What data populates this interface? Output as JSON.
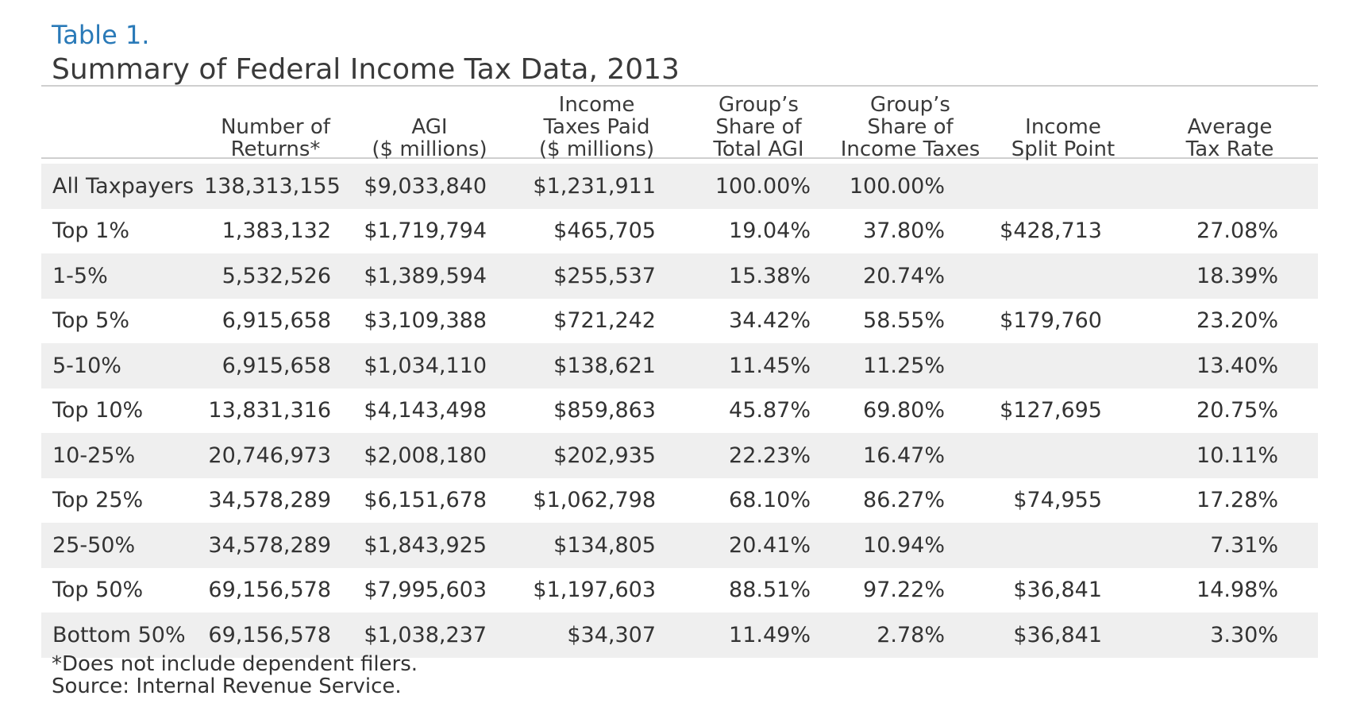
{
  "table": {
    "label": "Table 1.",
    "title": "Summary of Federal Income Tax Data, 2013",
    "headers": {
      "category": "",
      "returns": [
        "Number of",
        "Returns*"
      ],
      "agi": [
        "AGI",
        "($ millions)"
      ],
      "taxes_paid": [
        "Income",
        "Taxes Paid",
        "($ millions)"
      ],
      "share_agi": [
        "Group’s",
        "Share of",
        "Total AGI"
      ],
      "share_taxes": [
        "Group’s",
        "Share of",
        "Income Taxes"
      ],
      "split_point": [
        "Income",
        "Split Point"
      ],
      "avg_rate": [
        "Average",
        "Tax Rate"
      ]
    },
    "rows": [
      {
        "category": "All Taxpayers",
        "returns": "138,313,155",
        "agi": "$9,033,840",
        "taxes_paid": "$1,231,911",
        "share_agi": "100.00%",
        "share_taxes": "100.00%",
        "split_point": "",
        "avg_rate": ""
      },
      {
        "category": "Top 1%",
        "returns": "1,383,132",
        "agi": "$1,719,794",
        "taxes_paid": "$465,705",
        "share_agi": "19.04%",
        "share_taxes": "37.80%",
        "split_point": "$428,713",
        "avg_rate": "27.08%"
      },
      {
        "category": "1-5%",
        "returns": "5,532,526",
        "agi": "$1,389,594",
        "taxes_paid": "$255,537",
        "share_agi": "15.38%",
        "share_taxes": "20.74%",
        "split_point": "",
        "avg_rate": "18.39%"
      },
      {
        "category": "Top 5%",
        "returns": "6,915,658",
        "agi": "$3,109,388",
        "taxes_paid": "$721,242",
        "share_agi": "34.42%",
        "share_taxes": "58.55%",
        "split_point": "$179,760",
        "avg_rate": "23.20%"
      },
      {
        "category": "5-10%",
        "returns": "6,915,658",
        "agi": "$1,034,110",
        "taxes_paid": "$138,621",
        "share_agi": "11.45%",
        "share_taxes": "11.25%",
        "split_point": "",
        "avg_rate": "13.40%"
      },
      {
        "category": "Top 10%",
        "returns": "13,831,316",
        "agi": "$4,143,498",
        "taxes_paid": "$859,863",
        "share_agi": "45.87%",
        "share_taxes": "69.80%",
        "split_point": "$127,695",
        "avg_rate": "20.75%"
      },
      {
        "category": "10-25%",
        "returns": "20,746,973",
        "agi": "$2,008,180",
        "taxes_paid": "$202,935",
        "share_agi": "22.23%",
        "share_taxes": "16.47%",
        "split_point": "",
        "avg_rate": "10.11%"
      },
      {
        "category": "Top 25%",
        "returns": "34,578,289",
        "agi": "$6,151,678",
        "taxes_paid": "$1,062,798",
        "share_agi": "68.10%",
        "share_taxes": "86.27%",
        "split_point": "$74,955",
        "avg_rate": "17.28%"
      },
      {
        "category": "25-50%",
        "returns": "34,578,289",
        "agi": "$1,843,925",
        "taxes_paid": "$134,805",
        "share_agi": "20.41%",
        "share_taxes": "10.94%",
        "split_point": "",
        "avg_rate": "7.31%"
      },
      {
        "category": "Top 50%",
        "returns": "69,156,578",
        "agi": "$7,995,603",
        "taxes_paid": "$1,197,603",
        "share_agi": "88.51%",
        "share_taxes": "97.22%",
        "split_point": "$36,841",
        "avg_rate": "14.98%"
      },
      {
        "category": "Bottom 50%",
        "returns": "69,156,578",
        "agi": "$1,038,237",
        "taxes_paid": "$34,307",
        "share_agi": "11.49%",
        "share_taxes": "2.78%",
        "split_point": "$36,841",
        "avg_rate": "3.30%"
      }
    ],
    "footnote": "*Does not include dependent filers.",
    "source": "Source: Internal Revenue Service."
  }
}
